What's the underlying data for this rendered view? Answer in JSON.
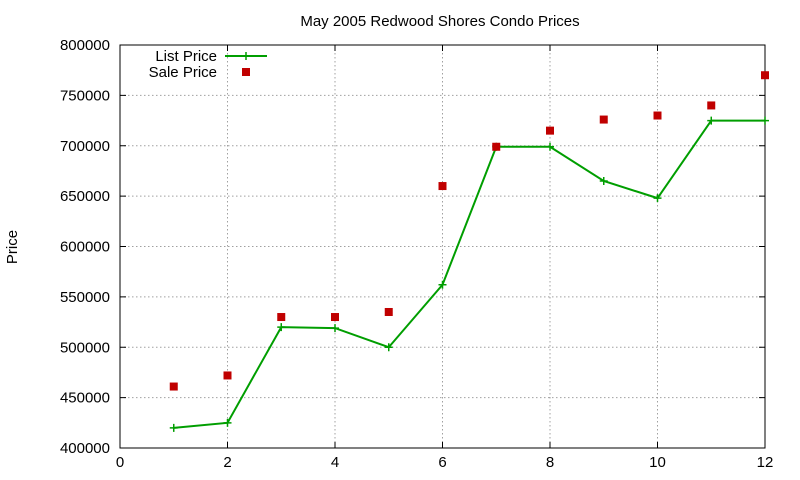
{
  "chart_data": {
    "type": "line",
    "title": "May 2005 Redwood Shores Condo Prices",
    "xlabel": "",
    "ylabel": "Price",
    "xlim": [
      0,
      12
    ],
    "ylim": [
      400000,
      800000
    ],
    "x_ticks": [
      0,
      2,
      4,
      6,
      8,
      10,
      12
    ],
    "y_ticks": [
      400000,
      450000,
      500000,
      550000,
      600000,
      650000,
      700000,
      750000,
      800000
    ],
    "grid": true,
    "legend_position": "top-left",
    "series": [
      {
        "name": "List Price",
        "style": "linespoints",
        "marker": "plus",
        "color": "#009e00",
        "x": [
          1,
          2,
          3,
          4,
          5,
          6,
          7,
          8,
          9,
          10,
          11,
          12
        ],
        "y": [
          420000,
          425000,
          520000,
          519000,
          500000,
          562000,
          699000,
          699000,
          665000,
          648000,
          725000,
          725000
        ]
      },
      {
        "name": "Sale Price",
        "style": "points",
        "marker": "square",
        "color": "#c00000",
        "x": [
          1,
          2,
          3,
          4,
          5,
          6,
          7,
          8,
          9,
          10,
          11,
          12
        ],
        "y": [
          461000,
          472000,
          530000,
          530000,
          535000,
          660000,
          699000,
          715000,
          726000,
          730000,
          740000,
          770000
        ]
      }
    ]
  }
}
